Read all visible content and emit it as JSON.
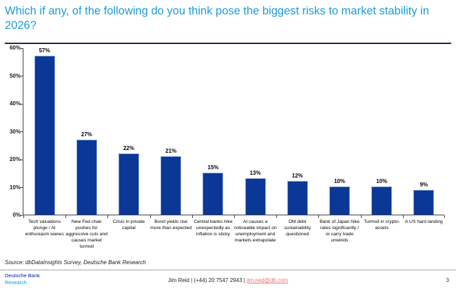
{
  "title": "Which if any, of the following do you think pose the biggest risks to market stability in 2026?",
  "chart_data": {
    "type": "bar",
    "categories": [
      "Tech valuations plunge / AI enthusiasm wanes",
      "New Fed chair pushes for aggressive cuts and causes market turmoil",
      "Crisis in private capital",
      "Bond yields rise more than expected",
      "Central banks hike unexpectedly as inflation is sticky",
      "AI causes a noticeable impact on unemployment and markets extrapolate",
      "DM debt sustainability questioned",
      "Bank of Japan hike rates significantly / or carry trade unwinds",
      "Turmoil in crypto-assets",
      "A US hard landing"
    ],
    "values": [
      57,
      27,
      22,
      21,
      15,
      13,
      12,
      10,
      10,
      9
    ],
    "value_labels": [
      "57%",
      "27%",
      "22%",
      "21%",
      "15%",
      "13%",
      "12%",
      "10%",
      "10%",
      "9%"
    ],
    "title": "Which if any, of the following do you think pose the biggest risks to market stability in 2026?",
    "xlabel": "",
    "ylabel": "",
    "ylim": [
      0,
      60
    ],
    "ytick_step": 10,
    "ytick_labels": [
      "0%",
      "10%",
      "20%",
      "30%",
      "40%",
      "50%",
      "60%"
    ],
    "grid": false,
    "legend": false,
    "bar_color": "#0b3896"
  },
  "source": "Source: dbDataInsights Survey, Deutsche Bank Research",
  "footer": {
    "brand_line1": "Deutsche Bank",
    "brand_line2": "Research",
    "contact_prefix": "Jim Reid | (+44) 20 7547 2943 | ",
    "contact_email": "jim.reid@db.com",
    "page_number": "3"
  },
  "colors": {
    "title_accent": "#1e9cd7",
    "title_rule": "#1e2642",
    "bar": "#0b3896",
    "axis": "#404040",
    "brand_dark_blue": "#0018a8",
    "brand_cyan": "#00a0dc",
    "email_link": "#e57373"
  }
}
